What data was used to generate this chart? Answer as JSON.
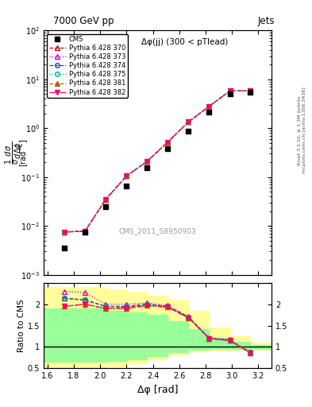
{
  "title_top": "7000 GeV pp",
  "title_right": "Jets",
  "plot_title": "Δφ(jj) (300 < pTlead)",
  "watermark": "CMS_2011_S8950903",
  "xlabel": "Δφ [rad]",
  "ylabel_ratio": "Ratio to CMS",
  "right_label": "Rivet 3.1.10, ≥ 3.3M events",
  "right_label2": "mcplots.cern.ch [arXiv:1306.3436]",
  "cms_x": [
    1.728,
    1.885,
    2.042,
    2.2,
    2.356,
    2.513,
    2.67,
    2.827,
    2.985,
    3.14
  ],
  "cms_y": [
    0.0035,
    0.0075,
    0.025,
    0.065,
    0.155,
    0.38,
    0.88,
    2.1,
    5.0,
    5.5
  ],
  "mc_x": [
    1.728,
    1.885,
    2.042,
    2.2,
    2.356,
    2.513,
    2.67,
    2.827,
    2.985,
    3.14
  ],
  "mc_y_base": [
    0.0075,
    0.0078,
    0.035,
    0.105,
    0.21,
    0.52,
    1.35,
    2.8,
    5.8,
    5.8
  ],
  "lines": [
    {
      "label": "Pythia 6.428 370",
      "color": "#cc0000",
      "linestyle": "--",
      "marker": "^",
      "mfc": "none"
    },
    {
      "label": "Pythia 6.428 373",
      "color": "#cc00cc",
      "linestyle": ":",
      "marker": "^",
      "mfc": "none"
    },
    {
      "label": "Pythia 6.428 374",
      "color": "#3333cc",
      "linestyle": "--",
      "marker": "o",
      "mfc": "none"
    },
    {
      "label": "Pythia 6.428 375",
      "color": "#00aaaa",
      "linestyle": ":",
      "marker": "o",
      "mfc": "none"
    },
    {
      "label": "Pythia 6.428 381",
      "color": "#aa6600",
      "linestyle": "--",
      "marker": "^",
      "mfc": "#aa6600"
    },
    {
      "label": "Pythia 6.428 382",
      "color": "#ff0066",
      "linestyle": "-.",
      "marker": "v",
      "mfc": "#ff0066"
    }
  ],
  "ratio_lines": [
    {
      "label": "Pythia 6.428 370",
      "color": "#cc0000",
      "linestyle": "--",
      "marker": "^",
      "mfc": "none",
      "x": [
        1.728,
        1.885,
        2.042,
        2.2,
        2.356,
        2.513,
        2.67,
        2.827,
        2.985,
        3.14
      ],
      "y": [
        2.14,
        2.1,
        1.95,
        1.93,
        2.0,
        1.95,
        1.7,
        1.2,
        1.15,
        0.88
      ]
    },
    {
      "label": "Pythia 6.428 373",
      "color": "#cc00cc",
      "linestyle": ":",
      "marker": "^",
      "mfc": "none",
      "x": [
        1.728,
        1.885,
        2.042,
        2.2,
        2.356,
        2.513,
        2.67,
        2.827,
        2.985,
        3.14
      ],
      "y": [
        2.3,
        2.27,
        2.0,
        2.0,
        2.03,
        1.97,
        1.72,
        1.22,
        1.18,
        0.86
      ]
    },
    {
      "label": "Pythia 6.428 374",
      "color": "#3333cc",
      "linestyle": "--",
      "marker": "o",
      "mfc": "none",
      "x": [
        1.728,
        1.885,
        2.042,
        2.2,
        2.356,
        2.513,
        2.67,
        2.827,
        2.985,
        3.14
      ],
      "y": [
        2.14,
        2.1,
        1.95,
        1.95,
        2.0,
        1.95,
        1.7,
        1.2,
        1.15,
        0.87
      ]
    },
    {
      "label": "Pythia 6.428 375",
      "color": "#00aaaa",
      "linestyle": ":",
      "marker": "o",
      "mfc": "none",
      "x": [
        1.728,
        1.885,
        2.042,
        2.2,
        2.356,
        2.513,
        2.67,
        2.827,
        2.985,
        3.14
      ],
      "y": [
        2.14,
        2.1,
        1.95,
        1.95,
        2.0,
        1.95,
        1.7,
        1.2,
        1.15,
        0.87
      ]
    },
    {
      "label": "Pythia 6.428 381",
      "color": "#aa6600",
      "linestyle": "--",
      "marker": "^",
      "mfc": "#aa6600",
      "x": [
        1.728,
        1.885,
        2.042,
        2.2,
        2.356,
        2.513,
        2.67,
        2.827,
        2.985,
        3.14
      ],
      "y": [
        1.95,
        2.0,
        1.9,
        1.9,
        1.97,
        1.93,
        1.68,
        1.2,
        1.15,
        0.86
      ]
    },
    {
      "label": "Pythia 6.428 382",
      "color": "#ff0066",
      "linestyle": "-.",
      "marker": "v",
      "mfc": "#ff0066",
      "x": [
        1.728,
        1.885,
        2.042,
        2.2,
        2.356,
        2.513,
        2.67,
        2.827,
        2.985,
        3.14
      ],
      "y": [
        1.95,
        2.0,
        1.9,
        1.9,
        1.97,
        1.93,
        1.68,
        1.2,
        1.15,
        0.86
      ]
    }
  ],
  "band_edges": [
    1.571,
    1.728,
    2.042,
    2.2,
    2.356,
    2.513,
    2.67,
    2.827,
    2.985,
    3.14,
    3.3
  ],
  "yellow_top": [
    2.4,
    2.4,
    2.35,
    2.3,
    2.2,
    2.1,
    1.85,
    1.45,
    1.25,
    1.1
  ],
  "yellow_bot": [
    0.4,
    0.4,
    0.55,
    0.62,
    0.72,
    0.82,
    0.9,
    0.92,
    0.92,
    0.93
  ],
  "green_top": [
    1.9,
    1.9,
    1.85,
    1.8,
    1.75,
    1.6,
    1.42,
    1.22,
    1.12,
    1.04
  ],
  "green_bot": [
    0.65,
    0.65,
    0.68,
    0.72,
    0.79,
    0.88,
    0.93,
    0.95,
    0.95,
    0.96
  ],
  "xlim": [
    1.571,
    3.3
  ],
  "ylim_main": [
    0.001,
    100.0
  ],
  "ylim_ratio": [
    0.5,
    2.5
  ]
}
